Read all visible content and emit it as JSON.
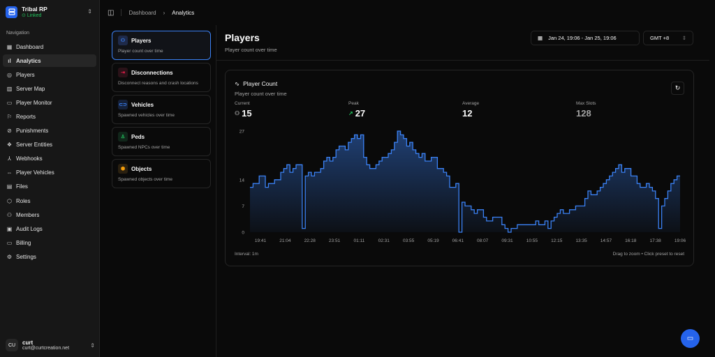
{
  "brand": {
    "name": "Tribal RP",
    "status": "Linked"
  },
  "nav_label": "Navigation",
  "nav": [
    {
      "label": "Dashboard",
      "icon": "dashboard-icon",
      "g": "▦"
    },
    {
      "label": "Analytics",
      "icon": "chart-bar-icon",
      "g": "ıl",
      "active": true
    },
    {
      "label": "Players",
      "icon": "user-circle-icon",
      "g": "◎"
    },
    {
      "label": "Server Map",
      "icon": "map-icon",
      "g": "▥"
    },
    {
      "label": "Player Monitor",
      "icon": "monitor-icon",
      "g": "▭"
    },
    {
      "label": "Reports",
      "icon": "flag-icon",
      "g": "⚐"
    },
    {
      "label": "Punishments",
      "icon": "ban-icon",
      "g": "⊘"
    },
    {
      "label": "Server Entities",
      "icon": "boxes-icon",
      "g": "❖"
    },
    {
      "label": "Webhooks",
      "icon": "webhook-icon",
      "g": "⅄"
    },
    {
      "label": "Player Vehicles",
      "icon": "car-icon",
      "g": "⇔"
    },
    {
      "label": "Files",
      "icon": "file-icon",
      "g": "▤"
    },
    {
      "label": "Roles",
      "icon": "shield-icon",
      "g": "⬡"
    },
    {
      "label": "Members",
      "icon": "users-icon",
      "g": "⚇"
    },
    {
      "label": "Audit Logs",
      "icon": "scroll-icon",
      "g": "▣"
    },
    {
      "label": "Billing",
      "icon": "credit-card-icon",
      "g": "▭"
    },
    {
      "label": "Settings",
      "icon": "gear-icon",
      "g": "⚙"
    }
  ],
  "user": {
    "initials": "CU",
    "name": "curt",
    "email": "curt@curtcreation.net"
  },
  "breadcrumb": [
    "Dashboard",
    "Analytics"
  ],
  "metrics": [
    {
      "title": "Players",
      "desc": "Player count over time",
      "icon": "users-icon",
      "g": "⚇",
      "color": "#3b82f6",
      "bg": "#1e2a4a",
      "active": true
    },
    {
      "title": "Disconnections",
      "desc": "Disconnect reasons and crash locations",
      "icon": "logout-icon",
      "g": "⇥",
      "color": "#e11d48",
      "bg": "#2a1218"
    },
    {
      "title": "Vehicles",
      "desc": "Spawned vehicles over time",
      "icon": "car-icon",
      "g": "⊂⊃",
      "color": "#3b82f6",
      "bg": "#15213a"
    },
    {
      "title": "Peds",
      "desc": "Spawned NPCs over time",
      "icon": "user-icon",
      "g": "♙",
      "color": "#22c55e",
      "bg": "#11261a"
    },
    {
      "title": "Objects",
      "desc": "Spawned objects over time",
      "icon": "box-icon",
      "g": "⬢",
      "color": "#f59e0b",
      "bg": "#2a2010"
    }
  ],
  "page": {
    "title": "Players",
    "subtitle": "Player count over time"
  },
  "date_range": "Jan 24, 19:06 - Jan 25, 19:06",
  "timezone": "GMT +8",
  "card": {
    "title": "Player Count",
    "subtitle": "Player count over time",
    "interval": "Interval: 1m",
    "hint": "Drag to zoom • Click preset to reset"
  },
  "stats": [
    {
      "label": "Current",
      "value": "15"
    },
    {
      "label": "Peak",
      "value": "27"
    },
    {
      "label": "Average",
      "value": "12"
    },
    {
      "label": "Max Slots",
      "value": "128"
    }
  ],
  "colors": {
    "accent": "#3b82f6",
    "peak_trend": "#22c55e"
  },
  "chart_data": {
    "type": "area",
    "x_range": [
      "Jan 24, 19:06",
      "Jan 25, 19:06"
    ],
    "xticks": [
      "19:41",
      "21:04",
      "22:28",
      "23:51",
      "01:11",
      "02:31",
      "03:55",
      "05:19",
      "06:41",
      "08:07",
      "09:31",
      "10:55",
      "12:15",
      "13:35",
      "14:57",
      "16:18",
      "17:38",
      "19:06"
    ],
    "yticks": [
      0,
      7,
      14,
      27
    ],
    "ylim": [
      0,
      27
    ],
    "grid": false,
    "interpolation": "step",
    "values": [
      12,
      13,
      13,
      15,
      15,
      12,
      13,
      13,
      14,
      14,
      16,
      17,
      18,
      16,
      17,
      18,
      18,
      1,
      15,
      16,
      15,
      16,
      16,
      17,
      19,
      20,
      19,
      20,
      22,
      23,
      23,
      22,
      24,
      25,
      26,
      25,
      26,
      20,
      18,
      17,
      17,
      18,
      19,
      20,
      20,
      21,
      22,
      24,
      27,
      26,
      25,
      23,
      24,
      22,
      21,
      20,
      21,
      19,
      19,
      20,
      20,
      17,
      17,
      16,
      15,
      12,
      12,
      13,
      0,
      8,
      7,
      7,
      6,
      5,
      6,
      6,
      4,
      3,
      3,
      4,
      4,
      4,
      2,
      1,
      0,
      1,
      1,
      2,
      2,
      2,
      2,
      2,
      2,
      3,
      2,
      2,
      3,
      1,
      3,
      4,
      5,
      6,
      5,
      5,
      6,
      6,
      7,
      7,
      7,
      9,
      11,
      10,
      10,
      11,
      12,
      13,
      14,
      15,
      16,
      17,
      18,
      16,
      17,
      17,
      15,
      15,
      13,
      12,
      12,
      13,
      12,
      11,
      9,
      1,
      7,
      9,
      11,
      13,
      14,
      15
    ]
  }
}
